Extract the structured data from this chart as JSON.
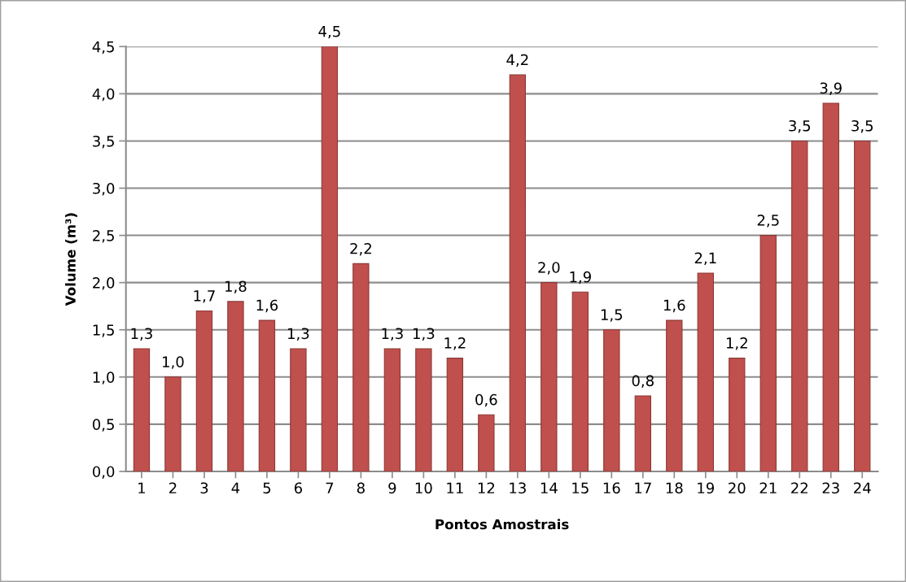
{
  "chart_data": {
    "type": "bar",
    "xlabel": "Pontos Amostrais",
    "ylabel": "Volume (m³)",
    "categories": [
      "1",
      "2",
      "3",
      "4",
      "5",
      "6",
      "7",
      "8",
      "9",
      "10",
      "11",
      "12",
      "13",
      "14",
      "15",
      "16",
      "17",
      "18",
      "19",
      "20",
      "21",
      "22",
      "23",
      "24"
    ],
    "values": [
      1.3,
      1.0,
      1.7,
      1.8,
      1.6,
      1.3,
      4.5,
      2.2,
      1.3,
      1.3,
      1.2,
      0.6,
      4.2,
      2.0,
      1.9,
      1.5,
      0.8,
      1.6,
      2.1,
      1.2,
      2.5,
      3.5,
      3.9,
      3.5
    ],
    "value_labels": [
      "1,3",
      "1,0",
      "1,7",
      "1,8",
      "1,6",
      "1,3",
      "4,5",
      "2,2",
      "1,3",
      "1,3",
      "1,2",
      "0,6",
      "4,2",
      "2,0",
      "1,9",
      "1,5",
      "0,8",
      "1,6",
      "2,1",
      "1,2",
      "2,5",
      "3,5",
      "3,9",
      "3,5"
    ],
    "color": "#c0504d",
    "ylim": [
      0,
      4.5
    ],
    "yticks": [
      {
        "value": 0,
        "label": "0,0"
      },
      {
        "value": 0.5,
        "label": "0,5"
      },
      {
        "value": 1,
        "label": "1,0"
      },
      {
        "value": 1.5,
        "label": "1,5"
      },
      {
        "value": 2,
        "label": "2,0"
      },
      {
        "value": 2.5,
        "label": "2,5"
      },
      {
        "value": 3,
        "label": "3,0"
      },
      {
        "value": 3.5,
        "label": "3,5"
      },
      {
        "value": 4,
        "label": "4,0"
      },
      {
        "value": 4.5,
        "label": "4,5"
      }
    ],
    "grid": "y",
    "legend": false
  }
}
